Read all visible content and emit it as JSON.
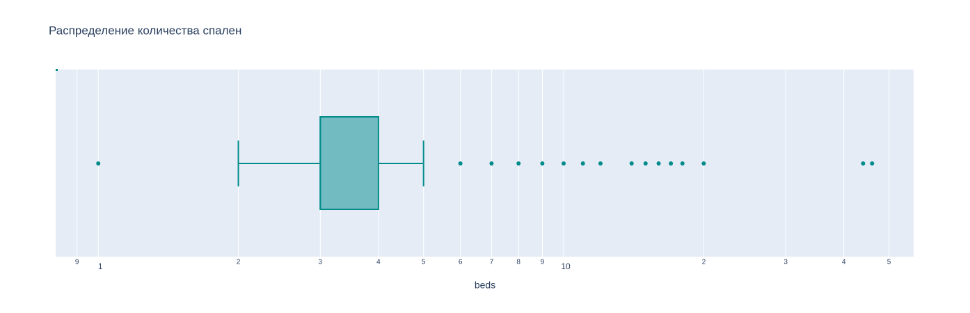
{
  "chart_data": {
    "type": "box",
    "title": "Распределение количества спален",
    "x_label": "beds",
    "log_x": true,
    "grid": true,
    "color": "#008b8b",
    "xlim": [
      0.81,
      56.5
    ],
    "xticks": [
      {
        "value": 0.9,
        "label": "9"
      },
      1,
      2,
      3,
      4,
      5,
      6,
      7,
      8,
      9,
      10,
      {
        "value": 20,
        "label": "2"
      },
      {
        "value": 30,
        "label": "3"
      },
      {
        "value": 40,
        "label": "4"
      },
      {
        "value": 50,
        "label": "5"
      }
    ],
    "box": {
      "min": 2,
      "q1": 3,
      "median": 3,
      "q3": 4,
      "max": 5
    },
    "outliers": [
      1,
      6,
      7,
      8,
      9,
      10,
      11,
      12,
      14,
      15,
      16,
      17,
      18,
      20,
      44,
      46
    ]
  }
}
